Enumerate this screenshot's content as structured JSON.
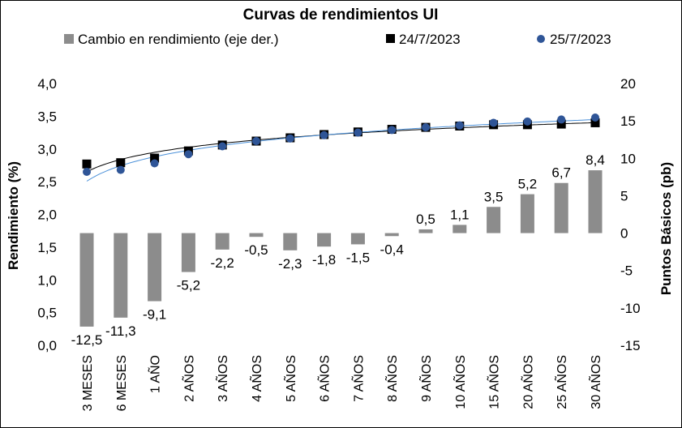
{
  "chart_data": {
    "type": "bar+scatter",
    "title": "Curvas de rendimientos UI",
    "ylabel_left": "Rendimiento (%)",
    "ylabel_right": "Puntos Básicos (pb)",
    "ylim_left": [
      0.0,
      4.0
    ],
    "ylim_right": [
      -15,
      20
    ],
    "yticks_left": [
      "0,0",
      "0,5",
      "1,0",
      "1,5",
      "2,0",
      "2,5",
      "3,0",
      "3,5",
      "4,0"
    ],
    "yticks_right": [
      "-15",
      "-10",
      "-5",
      "0",
      "5",
      "10",
      "15",
      "20"
    ],
    "categories": [
      "3 MESES",
      "6 MESES",
      "1 AÑO",
      "2 AÑOS",
      "3 AÑOS",
      "4 AÑOS",
      "5 AÑOS",
      "6 AÑOS",
      "7 AÑOS",
      "8 AÑOS",
      "9 AÑOS",
      "10 AÑOS",
      "15 AÑOS",
      "20 AÑOS",
      "25 AÑOS",
      "30 AÑOS"
    ],
    "legend_position": "top",
    "grid": false,
    "series": [
      {
        "name": "Cambio en rendimiento (eje der.)",
        "kind": "bar",
        "axis": "right",
        "color": "#8c8c8c",
        "values": [
          -12.5,
          -11.3,
          -9.1,
          -5.2,
          -2.2,
          -0.5,
          -2.3,
          -1.8,
          -1.5,
          -0.4,
          0.5,
          1.1,
          3.5,
          5.2,
          6.7,
          8.4
        ],
        "labels": [
          "-12,5",
          "-11,3",
          "-9,1",
          "-5,2",
          "-2,2",
          "-0,5",
          "-2,3",
          "-1,8",
          "-1,5",
          "-0,4",
          "0,5",
          "1,1",
          "3,5",
          "5,2",
          "6,7",
          "8,4"
        ]
      },
      {
        "name": "24/7/2023",
        "kind": "scatter",
        "marker": "square",
        "axis": "left",
        "color": "#000000",
        "values": [
          2.77,
          2.79,
          2.86,
          2.97,
          3.06,
          3.12,
          3.17,
          3.22,
          3.26,
          3.3,
          3.33,
          3.35,
          3.37,
          3.37,
          3.38,
          3.4
        ]
      },
      {
        "name": "25/7/2023",
        "kind": "scatter",
        "marker": "circle",
        "axis": "left",
        "color": "#2f5597",
        "values": [
          2.65,
          2.68,
          2.78,
          2.92,
          3.04,
          3.12,
          3.16,
          3.21,
          3.25,
          3.29,
          3.33,
          3.36,
          3.4,
          3.42,
          3.45,
          3.48
        ]
      }
    ]
  }
}
